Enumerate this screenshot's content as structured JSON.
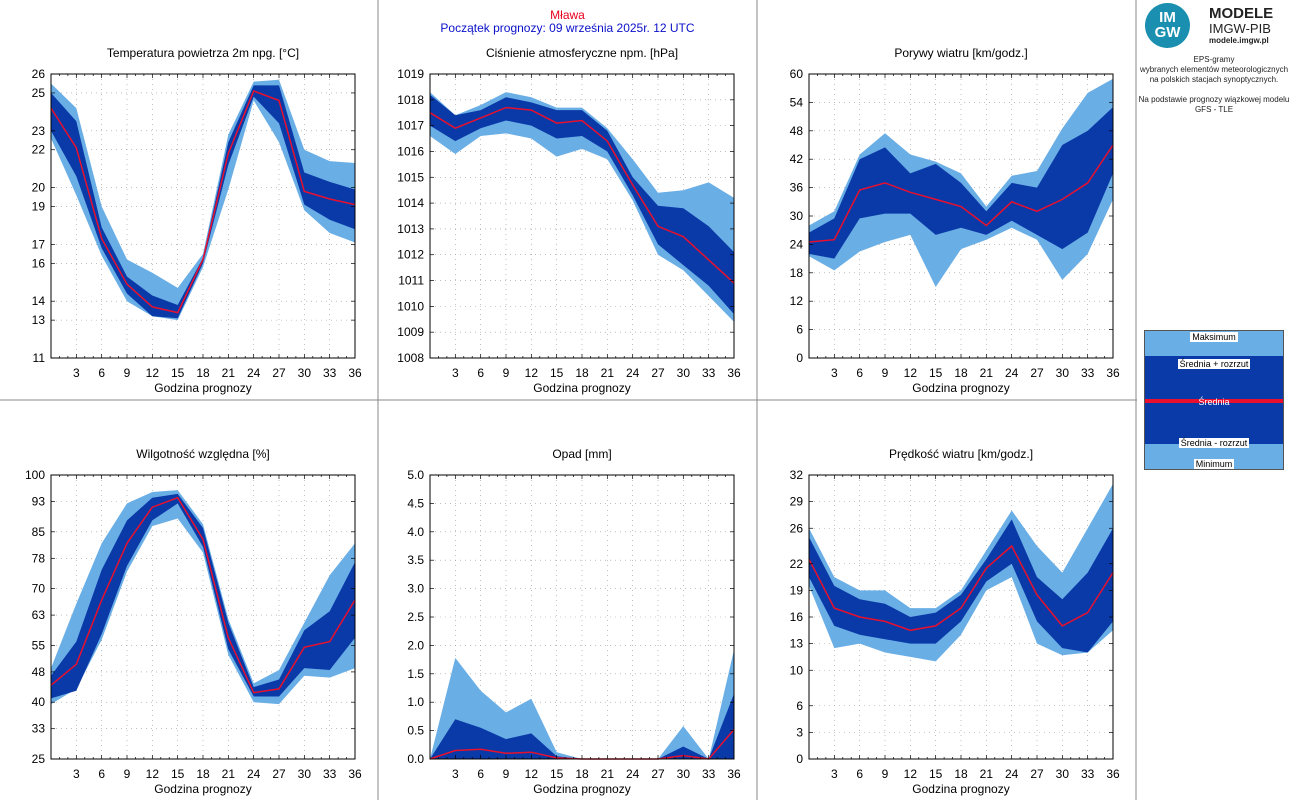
{
  "header": {
    "city": "Mława",
    "forecast_start": "Początek prognozy: 09 września 2025r. 12 UTC"
  },
  "sidebar": {
    "logo": {
      "circle_top": "IM",
      "circle_bottom": "GW",
      "title": "MODELE",
      "subtitle": "IMGW-PIB",
      "url": "modele.imgw.pl"
    },
    "description": [
      "EPS-gramy",
      "wybranych elementów meteorologicznych",
      "na polskich stacjach  synoptycznych.",
      "",
      "Na podstawie prognozy wiązkowej modelu",
      "GFS - TLE"
    ],
    "legend": {
      "max": "Maksimum",
      "mean_plus": "Średnia + rozrzut",
      "mean": "Średnia",
      "mean_minus": "Średnia - rozrzut",
      "min": "Minimum"
    }
  },
  "colors": {
    "light_band": "#6aaee6",
    "dark_band": "#0a3aa8",
    "mean_line": "#e8102e",
    "grid": "#999999"
  },
  "chart_data": [
    {
      "type": "area",
      "title": "Temperatura powietrza 2m npg. [°C]",
      "xlabel": "Godzina prognozy",
      "x": [
        0,
        3,
        6,
        9,
        12,
        15,
        18,
        21,
        24,
        27,
        30,
        33,
        36
      ],
      "xticks": [
        3,
        6,
        9,
        12,
        15,
        18,
        21,
        24,
        27,
        30,
        33,
        36
      ],
      "ylim": [
        11,
        26
      ],
      "yticks": [
        11,
        13,
        14,
        16,
        17,
        19,
        20,
        22,
        23,
        25,
        26
      ],
      "ytick_labels": [
        "11",
        "13",
        "14",
        "16",
        "17",
        "19",
        "20",
        "22",
        "23",
        "25",
        "26"
      ],
      "max": [
        25.5,
        24.2,
        19.0,
        16.2,
        15.5,
        14.7,
        16.5,
        22.8,
        25.6,
        25.7,
        22.0,
        21.4,
        21.3
      ],
      "mean_plus": [
        25.0,
        23.5,
        17.9,
        15.3,
        14.3,
        13.8,
        16.3,
        22.4,
        25.4,
        25.4,
        20.8,
        20.3,
        19.9
      ],
      "mean": [
        24.2,
        22.1,
        17.3,
        14.9,
        13.7,
        13.4,
        16.2,
        21.8,
        25.1,
        24.6,
        19.8,
        19.4,
        19.1
      ],
      "mean_minus": [
        23.0,
        20.6,
        16.8,
        14.4,
        13.2,
        13.1,
        16.0,
        21.2,
        24.8,
        23.4,
        19.1,
        18.3,
        17.8
      ],
      "min": [
        22.6,
        19.6,
        16.4,
        14.0,
        13.2,
        13.0,
        15.8,
        19.9,
        24.6,
        22.4,
        18.8,
        17.6,
        17.1
      ]
    },
    {
      "type": "area",
      "title": "Ciśnienie atmosferyczne npm. [hPa]",
      "xlabel": "",
      "x": [
        0,
        3,
        6,
        9,
        12,
        15,
        18,
        21,
        24,
        27,
        30,
        33,
        36
      ],
      "xticks": [
        3,
        6,
        9,
        12,
        15,
        18,
        21,
        24,
        27,
        30,
        33,
        36
      ],
      "ylim": [
        1008,
        1019
      ],
      "yticks": [
        1008,
        1009,
        1010,
        1011,
        1012,
        1013,
        1014,
        1015,
        1016,
        1017,
        1018,
        1019
      ],
      "ytick_labels": [
        "1008",
        "1009",
        "1010",
        "1011",
        "1012",
        "1013",
        "1014",
        "1015",
        "1016",
        "1017",
        "1018",
        "1019"
      ],
      "max": [
        1018.3,
        1017.4,
        1017.8,
        1018.3,
        1018.1,
        1017.7,
        1017.7,
        1016.9,
        1015.7,
        1014.4,
        1014.5,
        1014.8,
        1014.2
      ],
      "mean_plus": [
        1018.2,
        1017.4,
        1017.6,
        1018.1,
        1017.9,
        1017.6,
        1017.6,
        1016.8,
        1015.0,
        1013.9,
        1013.8,
        1013.1,
        1012.1
      ],
      "mean": [
        1017.5,
        1016.9,
        1017.3,
        1017.7,
        1017.6,
        1017.1,
        1017.2,
        1016.4,
        1014.7,
        1013.1,
        1012.7,
        1011.8,
        1010.9
      ],
      "mean_minus": [
        1017.0,
        1016.4,
        1016.9,
        1017.2,
        1017.0,
        1016.5,
        1016.6,
        1016.0,
        1014.3,
        1012.4,
        1011.6,
        1010.8,
        1009.7
      ],
      "min": [
        1016.6,
        1015.9,
        1016.6,
        1016.7,
        1016.5,
        1015.8,
        1016.1,
        1015.7,
        1014.1,
        1012.0,
        1011.4,
        1010.4,
        1009.4
      ]
    },
    {
      "type": "area",
      "title": "Porywy wiatru [km/godz.]",
      "xlabel": "",
      "x": [
        0,
        3,
        6,
        9,
        12,
        15,
        18,
        21,
        24,
        27,
        30,
        33,
        36
      ],
      "xticks": [
        3,
        6,
        9,
        12,
        15,
        18,
        21,
        24,
        27,
        30,
        33,
        36
      ],
      "ylim": [
        0,
        60
      ],
      "yticks": [
        0,
        6,
        12,
        18,
        24,
        30,
        36,
        42,
        48,
        54,
        60
      ],
      "ytick_labels": [
        "0",
        "6",
        "12",
        "18",
        "24",
        "30",
        "36",
        "42",
        "48",
        "54",
        "60"
      ],
      "max": [
        28.0,
        31.0,
        43.0,
        47.5,
        43.0,
        41.5,
        39.0,
        32.0,
        38.5,
        39.5,
        48.5,
        56.0,
        59.0
      ],
      "mean_plus": [
        26.5,
        29.5,
        42.0,
        44.5,
        39.0,
        41.0,
        37.0,
        31.0,
        37.0,
        36.0,
        45.0,
        48.0,
        53.0
      ],
      "mean": [
        24.5,
        25.0,
        35.5,
        37.0,
        35.0,
        33.5,
        32.0,
        28.0,
        33.0,
        31.0,
        33.5,
        37.0,
        45.0
      ],
      "mean_minus": [
        22.0,
        21.0,
        29.5,
        30.5,
        30.5,
        26.0,
        27.5,
        26.0,
        29.0,
        26.0,
        23.0,
        26.5,
        39.0
      ],
      "min": [
        21.5,
        18.5,
        22.5,
        24.5,
        26.0,
        15.0,
        23.0,
        25.0,
        27.5,
        25.0,
        16.5,
        22.0,
        33.5
      ]
    },
    {
      "type": "area",
      "title": "Wilgotność względna [%]",
      "xlabel": "",
      "x": [
        0,
        3,
        6,
        9,
        12,
        15,
        18,
        21,
        24,
        27,
        30,
        33,
        36
      ],
      "xticks": [
        3,
        6,
        9,
        12,
        15,
        18,
        21,
        24,
        27,
        30,
        33,
        36
      ],
      "ylim": [
        25,
        100
      ],
      "yticks": [
        25,
        33,
        40,
        48,
        55,
        63,
        70,
        78,
        85,
        93,
        100
      ],
      "ytick_labels": [
        "25",
        "33",
        "40",
        "48",
        "55",
        "63",
        "70",
        "78",
        "85",
        "93",
        "100"
      ],
      "max": [
        49.0,
        66.0,
        82.0,
        92.5,
        95.5,
        96.0,
        87.0,
        62.0,
        45.0,
        48.5,
        61.0,
        73.5,
        82.0
      ],
      "mean_plus": [
        47.0,
        56.0,
        75.0,
        88.0,
        94.0,
        95.0,
        86.0,
        61.0,
        44.0,
        46.0,
        59.0,
        64.0,
        77.0
      ],
      "mean": [
        44.5,
        50.0,
        67.0,
        82.0,
        91.5,
        94.0,
        83.0,
        57.0,
        42.5,
        43.5,
        54.5,
        56.0,
        67.0
      ],
      "mean_minus": [
        41.0,
        43.0,
        58.0,
        76.0,
        88.0,
        92.5,
        81.0,
        54.0,
        41.5,
        41.5,
        49.0,
        48.5,
        57.0
      ],
      "min": [
        39.5,
        43.5,
        56.5,
        74.5,
        86.5,
        88.5,
        79.5,
        52.5,
        40.0,
        39.5,
        47.0,
        46.5,
        49.0
      ]
    },
    {
      "type": "area",
      "title": "Opad [mm]",
      "xlabel": "Godzina prognozy",
      "x": [
        0,
        3,
        6,
        9,
        12,
        15,
        18,
        21,
        24,
        27,
        30,
        33,
        36
      ],
      "xticks": [
        3,
        6,
        9,
        12,
        15,
        18,
        21,
        24,
        27,
        30,
        33,
        36
      ],
      "ylim": [
        0,
        5
      ],
      "yticks": [
        0,
        0.5,
        1,
        1.5,
        2,
        2.5,
        3,
        3.5,
        4,
        4.5,
        5
      ],
      "ytick_labels": [
        "0.0",
        "0.5",
        "1.0",
        "1.5",
        "2.0",
        "2.5",
        "3.0",
        "3.5",
        "4.0",
        "4.5",
        "5.0"
      ],
      "max": [
        0.0,
        1.78,
        1.2,
        0.82,
        1.06,
        0.12,
        0.0,
        0.0,
        0.0,
        0.0,
        0.58,
        0.0,
        1.92
      ],
      "mean_plus": [
        0.0,
        0.7,
        0.55,
        0.35,
        0.45,
        0.05,
        0.0,
        0.0,
        0.0,
        0.0,
        0.22,
        0.0,
        1.15
      ],
      "mean": [
        0.0,
        0.15,
        0.17,
        0.1,
        0.12,
        0.02,
        0.0,
        0.0,
        0.0,
        0.0,
        0.06,
        0.0,
        0.52
      ],
      "mean_minus": [
        0.0,
        0.0,
        0.0,
        0.0,
        0.0,
        0.0,
        0.0,
        0.0,
        0.0,
        0.0,
        0.0,
        0.0,
        0.0
      ],
      "min": [
        0.0,
        0.0,
        0.0,
        0.0,
        0.0,
        0.0,
        0.0,
        0.0,
        0.0,
        0.0,
        0.0,
        0.0,
        0.0
      ]
    },
    {
      "type": "area",
      "title": "Prędkość wiatru [km/godz.]",
      "xlabel": "",
      "x": [
        0,
        3,
        6,
        9,
        12,
        15,
        18,
        21,
        24,
        27,
        30,
        33,
        36
      ],
      "xticks": [
        3,
        6,
        9,
        12,
        15,
        18,
        21,
        24,
        27,
        30,
        33,
        36
      ],
      "ylim": [
        0,
        32
      ],
      "yticks": [
        0,
        3,
        6,
        10,
        13,
        16,
        19,
        22,
        26,
        29,
        32
      ],
      "ytick_labels": [
        "0",
        "3",
        "6",
        "10",
        "13",
        "16",
        "19",
        "22",
        "26",
        "29",
        "32"
      ],
      "max": [
        26.0,
        20.5,
        19.0,
        19.0,
        17.0,
        17.0,
        19.0,
        23.5,
        28.0,
        24.0,
        21.0,
        26.0,
        31.0
      ],
      "mean_plus": [
        25.0,
        19.5,
        18.0,
        17.5,
        16.0,
        16.5,
        18.5,
        22.5,
        27.0,
        20.5,
        18.0,
        21.0,
        26.0
      ],
      "mean": [
        22.5,
        17.0,
        16.0,
        15.5,
        14.5,
        15.0,
        17.0,
        21.5,
        24.0,
        18.5,
        15.0,
        16.5,
        21.0
      ],
      "mean_minus": [
        20.5,
        15.0,
        14.0,
        13.5,
        13.0,
        13.0,
        15.5,
        20.0,
        22.0,
        15.5,
        12.5,
        12.0,
        15.5
      ],
      "min": [
        19.5,
        12.5,
        13.0,
        12.0,
        11.5,
        11.0,
        14.0,
        19.0,
        20.5,
        13.0,
        11.7,
        12.0,
        14.5
      ]
    }
  ]
}
